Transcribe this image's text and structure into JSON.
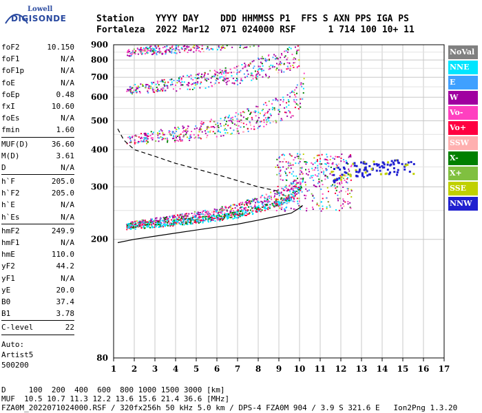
{
  "logo": {
    "line1": "Lowell",
    "line2": "DIGISONDE"
  },
  "header": {
    "line1": "Station    YYYY DAY    DDD HHMMSS P1  FFS S AXN PPS IGA PS",
    "line2": "Fortaleza  2022 Mar12  071 024000 RSF      1 714 100 10+ 11"
  },
  "params": {
    "group1": [
      [
        "foF2",
        "10.150"
      ],
      [
        "foF1",
        "N/A"
      ],
      [
        "foF1p",
        "N/A"
      ],
      [
        "foE",
        "N/A"
      ],
      [
        "foEp",
        "0.48"
      ],
      [
        "fxI",
        "10.60"
      ],
      [
        "foEs",
        "N/A"
      ],
      [
        "fmin",
        "1.60"
      ]
    ],
    "group2": [
      [
        "MUF(D)",
        "36.60"
      ],
      [
        "M(D)",
        "3.61"
      ],
      [
        "D",
        "N/A"
      ]
    ],
    "group3": [
      [
        "h`F",
        "205.0"
      ],
      [
        "h`F2",
        "205.0"
      ],
      [
        "h`E",
        "N/A"
      ],
      [
        "h`Es",
        "N/A"
      ]
    ],
    "group4": [
      [
        "hmF2",
        "249.9"
      ],
      [
        "hmF1",
        "N/A"
      ],
      [
        "hmE",
        "110.0"
      ],
      [
        "yF2",
        "44.2"
      ],
      [
        "yF1",
        "N/A"
      ],
      [
        "yE",
        "20.0"
      ],
      [
        "B0",
        "37.4"
      ],
      [
        "B1",
        "3.78"
      ]
    ],
    "group5": [
      [
        "C-level",
        "22"
      ]
    ],
    "auto": [
      "Auto:",
      "Artist5",
      "500200"
    ]
  },
  "legend": [
    {
      "label": "NoVal",
      "color": "#808080"
    },
    {
      "label": "NNE",
      "color": "#00e5ff"
    },
    {
      "label": "E",
      "color": "#3fa0ff"
    },
    {
      "label": "W",
      "color": "#a000a0"
    },
    {
      "label": "Vo-",
      "color": "#ff40c0"
    },
    {
      "label": "Vo+",
      "color": "#ff0040"
    },
    {
      "label": "SSW",
      "color": "#ffb0b0"
    },
    {
      "label": "X-",
      "color": "#008000"
    },
    {
      "label": "X+",
      "color": "#80c040"
    },
    {
      "label": "SSE",
      "color": "#c0d000"
    },
    {
      "label": "NNW",
      "color": "#2020d0"
    }
  ],
  "footer": {
    "line1": "D     100  200  400  600  800 1000 1500 3000 [km]",
    "line2": "MUF  10.5 10.7 11.3 12.2 13.6 15.6 21.4 36.6 [MHz]",
    "line3": "FZA0M_2022071024000.RSF / 320fx256h 50 kHz 5.0 km / DPS-4 FZA0M 904 / 3.9 S 321.6 E   Ion2Png 1.3.20"
  },
  "chart_data": {
    "type": "scatter",
    "xlim": [
      1,
      17
    ],
    "ylim": [
      80,
      900
    ],
    "x_ticks": [
      "1",
      "2",
      "3",
      "4",
      "5",
      "6",
      "7",
      "8",
      "9",
      "10",
      "11",
      "12",
      "13",
      "14",
      "15",
      "16",
      "17"
    ],
    "y_ticks": [
      "80",
      "200",
      "300",
      "400",
      "500",
      "600",
      "700",
      "800",
      "900"
    ],
    "y_tick_values": [
      80,
      200,
      300,
      400,
      500,
      600,
      700,
      800,
      900
    ],
    "scale_y": "log",
    "grid": true,
    "traces": [
      {
        "name": "F-trace 1st hop",
        "x": [
          1.6,
          2,
          3,
          4,
          5,
          6,
          7,
          8,
          9,
          9.5,
          10,
          10.15
        ],
        "y": [
          220,
          222,
          225,
          228,
          232,
          236,
          242,
          252,
          265,
          275,
          295,
          320
        ]
      },
      {
        "name": "F-trace 2nd hop",
        "x": [
          1.6,
          2,
          3,
          4,
          5,
          6,
          7,
          8,
          9,
          9.5,
          10,
          10.2
        ],
        "y": [
          418,
          422,
          428,
          432,
          440,
          450,
          462,
          480,
          505,
          525,
          560,
          610
        ]
      },
      {
        "name": "F-trace 3rd hop",
        "x": [
          1.6,
          2,
          3,
          4,
          5,
          6,
          7,
          8,
          9,
          10
        ],
        "y": [
          620,
          625,
          632,
          640,
          650,
          662,
          678,
          700,
          730,
          780
        ]
      },
      {
        "name": "F-trace 4th hop",
        "x": [
          1.6,
          2,
          3,
          4,
          5,
          6,
          7,
          8
        ],
        "y": [
          830,
          835,
          845,
          855,
          865,
          880,
          895,
          900
        ]
      },
      {
        "name": "NNW echoes",
        "x": [
          11.5,
          12,
          12.5,
          13,
          13.5,
          14,
          14.5,
          15,
          15.5
        ],
        "y": [
          330,
          340,
          350,
          345,
          355,
          350,
          352,
          348,
          345
        ]
      }
    ],
    "profile_solid": {
      "x": [
        1.2,
        2,
        3,
        4,
        5,
        6,
        7,
        8,
        9,
        9.6,
        10,
        10.15
      ],
      "y": [
        195,
        200,
        205,
        210,
        215,
        220,
        225,
        232,
        240,
        245,
        255,
        260
      ]
    },
    "profile_dashed": {
      "x": [
        1.2,
        1.5,
        2,
        3,
        4,
        5,
        6,
        7,
        8,
        9
      ],
      "y": [
        470,
        430,
        400,
        380,
        360,
        345,
        330,
        315,
        300,
        290
      ]
    }
  }
}
